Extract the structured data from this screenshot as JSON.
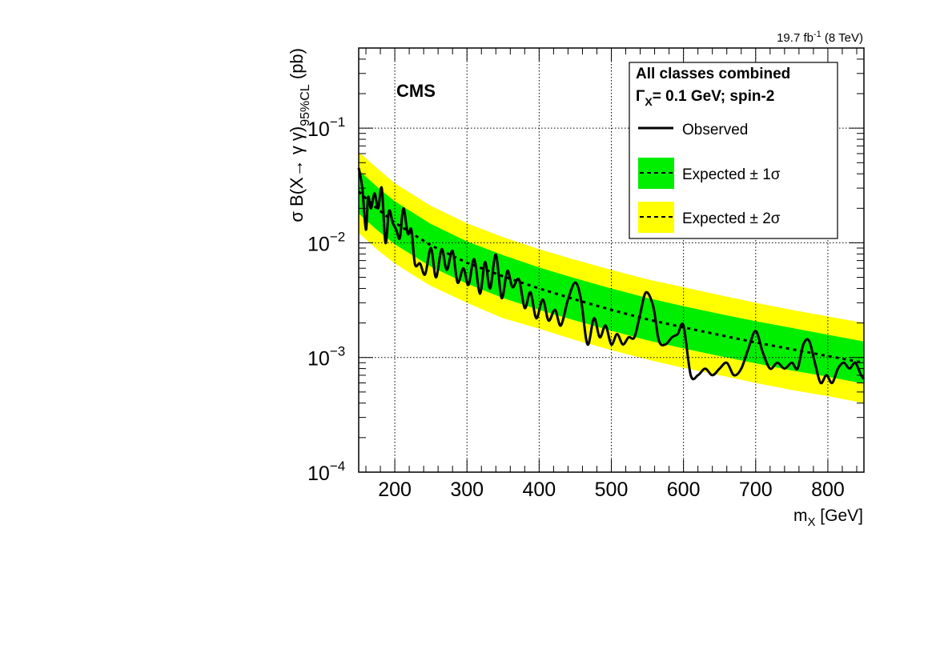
{
  "chart_data": {
    "type": "line",
    "title": "",
    "experiment_label": "CMS",
    "lumi_label": {
      "value": "19.7 fb",
      "sup": "-1",
      "energy": " (8 TeV)"
    },
    "xlabel": {
      "main": "m",
      "sub": "X",
      "unit": " [GeV]"
    },
    "ylabel": {
      "pre": "σ B(X→ γ γ)",
      "sub": "95%CL",
      "unit": "  (pb)"
    },
    "xlim": [
      150,
      850
    ],
    "ylim": [
      0.0001,
      0.5
    ],
    "yscale": "log",
    "grid": true,
    "x_ticks": [
      200,
      300,
      400,
      500,
      600,
      700,
      800
    ],
    "y_ticks": [
      {
        "value": 0.0001,
        "base": "10",
        "exp": "−4"
      },
      {
        "value": 0.001,
        "base": "10",
        "exp": "−3"
      },
      {
        "value": 0.01,
        "base": "10",
        "exp": "−2"
      },
      {
        "value": 0.1,
        "base": "10",
        "exp": "−1"
      }
    ],
    "legend": {
      "position": "top-right",
      "title": "All classes combined",
      "subtitle": {
        "gamma": "Γ",
        "sub": "X",
        "rest": "= 0.1 GeV; spin-2"
      },
      "entries": [
        {
          "label": "Observed",
          "style": "solid-line"
        },
        {
          "label": "Expected ± 1σ",
          "style": "dashed-green-box"
        },
        {
          "label": "Expected ± 2σ",
          "style": "dashed-yellow-box"
        }
      ]
    },
    "colors": {
      "band_1sigma": "#00ee00",
      "band_2sigma": "#ffff00",
      "observed": "#000000",
      "expected": "#000000"
    },
    "expected": {
      "x": [
        150,
        175,
        200,
        250,
        300,
        350,
        400,
        450,
        500,
        550,
        600,
        650,
        700,
        750,
        800,
        850
      ],
      "median": [
        0.028,
        0.02,
        0.015,
        0.0095,
        0.0067,
        0.0051,
        0.004,
        0.0032,
        0.0026,
        0.00215,
        0.00183,
        0.00157,
        0.00135,
        0.00118,
        0.00103,
        0.0009
      ],
      "band1_low": [
        0.018,
        0.013,
        0.0097,
        0.0062,
        0.0044,
        0.0033,
        0.0026,
        0.0021,
        0.00171,
        0.00141,
        0.0012,
        0.00103,
        0.00089,
        0.00077,
        0.00068,
        0.00059
      ],
      "band1_high": [
        0.043,
        0.031,
        0.023,
        0.0146,
        0.0103,
        0.0078,
        0.0061,
        0.0049,
        0.004,
        0.0033,
        0.0028,
        0.0024,
        0.00207,
        0.00181,
        0.00158,
        0.00138
      ],
      "band2_low": [
        0.0122,
        0.0088,
        0.0066,
        0.0042,
        0.003,
        0.0022,
        0.00178,
        0.00142,
        0.00116,
        0.00096,
        0.00081,
        0.0007,
        0.0006,
        0.00052,
        0.00046,
        0.0004
      ],
      "band2_high": [
        0.062,
        0.045,
        0.033,
        0.021,
        0.0148,
        0.0112,
        0.0088,
        0.0071,
        0.0058,
        0.0048,
        0.0041,
        0.0035,
        0.003,
        0.0026,
        0.00228,
        0.002
      ]
    },
    "observed": {
      "x": [
        150,
        155,
        160,
        163,
        167,
        172,
        177,
        182,
        187,
        192,
        197,
        202,
        207,
        212,
        218,
        223,
        228,
        235,
        242,
        250,
        257,
        265,
        272,
        280,
        287,
        295,
        302,
        310,
        318,
        325,
        332,
        340,
        348,
        356,
        363,
        372,
        380,
        388,
        396,
        405,
        413,
        422,
        430,
        440,
        450,
        458,
        467,
        476,
        484,
        492,
        500,
        508,
        516,
        524,
        532,
        540,
        548,
        558,
        566,
        575,
        584,
        592,
        600,
        610,
        620,
        630,
        640,
        650,
        660,
        670,
        680,
        690,
        700,
        710,
        720,
        730,
        740,
        750,
        758,
        766,
        774,
        782,
        790,
        798,
        806,
        814,
        822,
        830,
        838,
        846,
        850
      ],
      "y": [
        0.045,
        0.03,
        0.013,
        0.025,
        0.02,
        0.027,
        0.02,
        0.03,
        0.01,
        0.019,
        0.015,
        0.013,
        0.011,
        0.02,
        0.012,
        0.013,
        0.0065,
        0.0066,
        0.0053,
        0.009,
        0.005,
        0.0088,
        0.0058,
        0.0085,
        0.0045,
        0.006,
        0.0043,
        0.0072,
        0.0036,
        0.0068,
        0.004,
        0.0079,
        0.0033,
        0.0057,
        0.0041,
        0.0048,
        0.0027,
        0.0037,
        0.0022,
        0.0032,
        0.0021,
        0.0026,
        0.0019,
        0.0032,
        0.0045,
        0.0032,
        0.0013,
        0.0022,
        0.0015,
        0.0019,
        0.0013,
        0.0016,
        0.0013,
        0.0015,
        0.0015,
        0.0024,
        0.0037,
        0.0028,
        0.0014,
        0.0013,
        0.0015,
        0.0016,
        0.0019,
        0.0007,
        0.0007,
        0.0008,
        0.0007,
        0.0008,
        0.0009,
        0.0007,
        0.0008,
        0.0012,
        0.0017,
        0.0011,
        0.0008,
        0.0009,
        0.0008,
        0.0009,
        0.0008,
        0.0013,
        0.0014,
        0.0009,
        0.0006,
        0.0007,
        0.0006,
        0.0008,
        0.0009,
        0.0008,
        0.0009,
        0.0007,
        0.00065
      ]
    }
  }
}
